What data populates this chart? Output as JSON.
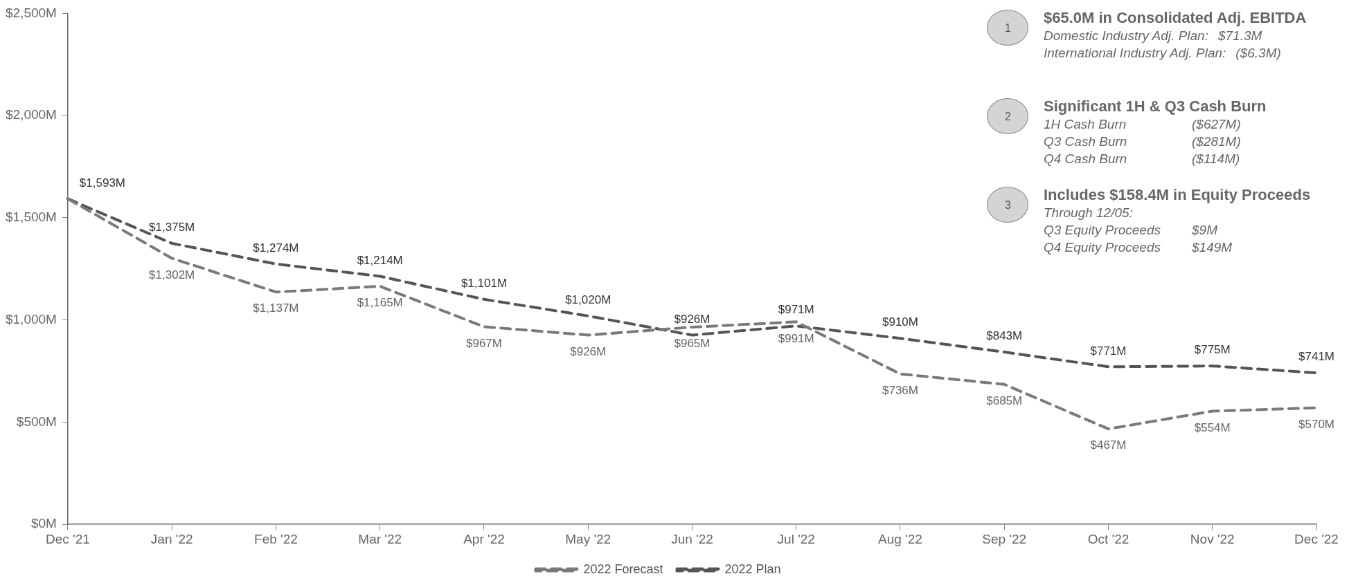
{
  "chart_data": {
    "type": "line",
    "categories": [
      "Dec '21",
      "Jan '22",
      "Feb '22",
      "Mar '22",
      "Apr '22",
      "May '22",
      "Jun '22",
      "Jul '22",
      "Aug '22",
      "Sep '22",
      "Oct '22",
      "Nov '22",
      "Dec '22"
    ],
    "series": [
      {
        "name": "2022 Forecast",
        "color": "#7a7a7a",
        "values": [
          1593,
          1302,
          1137,
          1165,
          967,
          926,
          965,
          991,
          736,
          685,
          467,
          554,
          570
        ],
        "value_labels": [
          null,
          "$1,302M",
          "$1,137M",
          "$1,165M",
          "$967M",
          "$926M",
          "$965M",
          "$991M",
          "$736M",
          "$685M",
          "$467M",
          "$554M",
          "$570M"
        ]
      },
      {
        "name": "2022 Plan",
        "color": "#555555",
        "values": [
          1593,
          1375,
          1274,
          1214,
          1101,
          1020,
          926,
          971,
          910,
          843,
          771,
          775,
          741
        ],
        "value_labels": [
          "$1,593M",
          "$1,375M",
          "$1,274M",
          "$1,214M",
          "$1,101M",
          "$1,020M",
          "$926M",
          "$971M",
          "$910M",
          "$843M",
          "$771M",
          "$775M",
          "$741M"
        ]
      }
    ],
    "ylim": [
      0,
      2500
    ],
    "yticks": [
      {
        "value": 0,
        "label": "$0M"
      },
      {
        "value": 500,
        "label": "$500M"
      },
      {
        "value": 1000,
        "label": "$1,000M"
      },
      {
        "value": 1500,
        "label": "$1,500M"
      },
      {
        "value": 2000,
        "label": "$2,000M"
      },
      {
        "value": 2500,
        "label": "$2,500M"
      }
    ],
    "grid": false,
    "legend": "bottom",
    "marker": "none",
    "line_style": "dashed",
    "annotations": [
      "1",
      "$65.0M in Consolidated Adj. EBITDA\nDomestic Industry Adj. Plan:\t$71.3M\nInternational Industry Adj. Plan:\t($6.3M)",
      "2",
      "Significant 1H & Q3 Cash Burn\n1H Cash Burn\t($627M)\nQ3 Cash Burn\t($281M)\nQ4 Cash Burn\t($114M)",
      "3",
      "Includes $158.4M in Equity Proceeds\nThrough 12/05:\nQ3 Equity Proceeds\t$9M\nQ4 Equity Proceeds\t$149M"
    ]
  }
}
